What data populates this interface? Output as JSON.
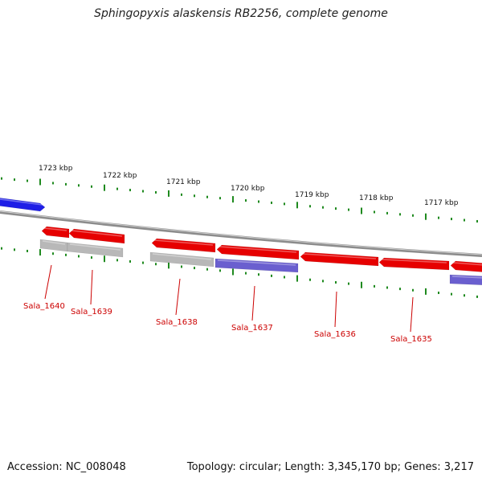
{
  "title": "Sphingopyxis alaskensis RB2256, complete genome",
  "footer": {
    "accession_prefix": "Accession: ",
    "accession": "NC_008048",
    "topology_prefix": "Topology: ",
    "topology": "circular",
    "length_prefix": "; Length: ",
    "length": "3,345,170 bp",
    "genes_prefix": "; Genes: ",
    "genes": "3,217"
  },
  "colors": {
    "forward_gene": "#e60000",
    "reverse_gene_gray": "#b8b8b8",
    "reverse_gene_purple": "#6a5fcf",
    "blue_gene": "#1f1fe6",
    "backbone": "#8c8c8c",
    "tick": "#1f8a1f",
    "gene_label": "#cc0000"
  },
  "kbp_labels": [
    "1723 kbp",
    "1722 kbp",
    "1721 kbp",
    "1720 kbp",
    "1719 kbp",
    "1718 kbp",
    "1717 kbp"
  ],
  "gene_labels": [
    "Sala_1640",
    "Sala_1639",
    "Sala_1638",
    "Sala_1637",
    "Sala_1636",
    "Sala_1635"
  ]
}
